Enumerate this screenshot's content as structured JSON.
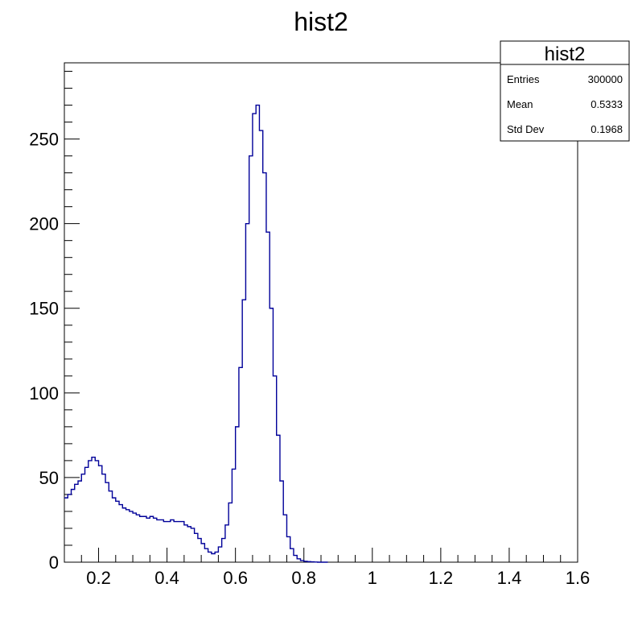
{
  "chart_data": {
    "type": "bar",
    "title": "hist2",
    "xlabel": "",
    "ylabel": "",
    "xlim": [
      0.1,
      1.6
    ],
    "ylim": [
      0,
      295
    ],
    "x_ticks": [
      0.2,
      0.4,
      0.6,
      0.8,
      1,
      1.2,
      1.4,
      1.6
    ],
    "x_tick_labels": [
      "0.2",
      "0.4",
      "0.6",
      "0.8",
      "1",
      "1.2",
      "1.4",
      "1.6"
    ],
    "y_ticks": [
      0,
      50,
      100,
      150,
      200,
      250
    ],
    "y_tick_labels": [
      "0",
      "50",
      "100",
      "150",
      "200",
      "250"
    ],
    "grid": false,
    "line_color": "#000099",
    "series": [
      {
        "name": "hist2",
        "x": [
          0.1,
          0.11,
          0.12,
          0.13,
          0.14,
          0.15,
          0.16,
          0.17,
          0.18,
          0.19,
          0.2,
          0.21,
          0.22,
          0.23,
          0.24,
          0.25,
          0.26,
          0.27,
          0.28,
          0.29,
          0.3,
          0.31,
          0.32,
          0.33,
          0.34,
          0.35,
          0.36,
          0.37,
          0.38,
          0.39,
          0.4,
          0.41,
          0.42,
          0.43,
          0.44,
          0.45,
          0.46,
          0.47,
          0.48,
          0.49,
          0.5,
          0.51,
          0.52,
          0.53,
          0.54,
          0.55,
          0.56,
          0.57,
          0.58,
          0.59,
          0.6,
          0.61,
          0.62,
          0.63,
          0.64,
          0.65,
          0.66,
          0.67,
          0.68,
          0.69,
          0.7,
          0.71,
          0.72,
          0.73,
          0.74,
          0.75,
          0.76,
          0.77,
          0.78,
          0.79,
          0.8,
          0.81,
          0.82,
          0.83,
          0.84,
          0.85,
          0.86
        ],
        "values": [
          38,
          40,
          43,
          46,
          48,
          52,
          56,
          60,
          62,
          60,
          57,
          52,
          47,
          42,
          38,
          36,
          34,
          32,
          31,
          30,
          29,
          28,
          27,
          27,
          26,
          27,
          26,
          25,
          25,
          24,
          24,
          25,
          24,
          24,
          24,
          22,
          21,
          20,
          17,
          14,
          11,
          8,
          6,
          5,
          6,
          9,
          14,
          22,
          35,
          55,
          80,
          115,
          155,
          200,
          240,
          265,
          270,
          255,
          230,
          195,
          150,
          110,
          75,
          48,
          28,
          15,
          8,
          4,
          2,
          1,
          0.5,
          0.3,
          0.2,
          0.1,
          0,
          0,
          0
        ]
      }
    ]
  },
  "stats": {
    "title": "hist2",
    "rows": [
      {
        "label": "Entries",
        "value": "300000"
      },
      {
        "label": "Mean",
        "value": "0.5333"
      },
      {
        "label": "Std Dev",
        "value": "0.1968"
      }
    ]
  }
}
